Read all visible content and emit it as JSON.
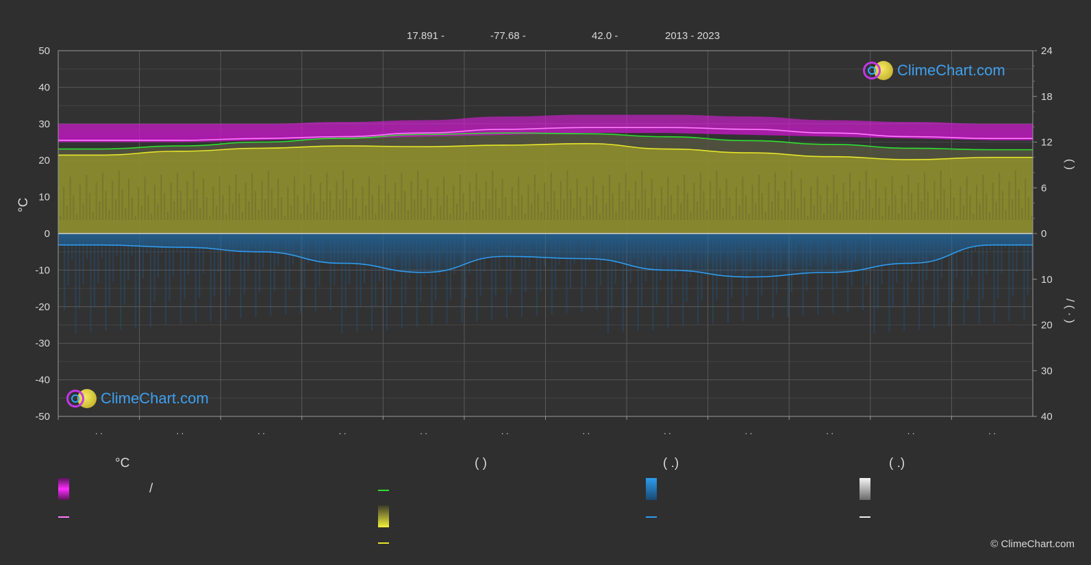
{
  "header": {
    "lat": "17.891 -",
    "lon": "-77.68 -",
    "elev": "42.0 -",
    "years": "2013 - 2023"
  },
  "logo_text": "ClimeChart.com",
  "copyright": "© ClimeChart.com",
  "chart_data": {
    "type": "area",
    "x": [
      1,
      2,
      3,
      4,
      5,
      6,
      7,
      8,
      9,
      10,
      11,
      12
    ],
    "month_labels": [
      ". .",
      ". .",
      ". .",
      ". .",
      ". .",
      ". .",
      ". .",
      ". .",
      ". .",
      ". .",
      ". .",
      ". ."
    ],
    "left_axis": {
      "ylabel": "°C",
      "ylim": [
        -50,
        50
      ],
      "ticks": [
        -50,
        -40,
        -30,
        -20,
        -10,
        0,
        10,
        20,
        30,
        40,
        50
      ]
    },
    "right_axis_top": {
      "ylim": [
        0,
        24
      ],
      "ticks": [
        0,
        6,
        12,
        18,
        24
      ],
      "label": "( )"
    },
    "right_axis_bottom": {
      "ylim": [
        0,
        40
      ],
      "ticks": [
        0,
        10,
        20,
        30,
        40
      ],
      "label": "/ ( · )"
    },
    "series": [
      {
        "id": "temp_range",
        "color": "#d620d6",
        "min": [
          25,
          25,
          25.5,
          26,
          26.5,
          27,
          27.5,
          27.5,
          27,
          26.5,
          26,
          25.5
        ],
        "max": [
          30,
          30,
          30,
          30.5,
          31,
          32,
          32.5,
          32.5,
          32,
          31,
          30.5,
          30
        ]
      },
      {
        "id": "temp_avg",
        "color": "#ff7cff",
        "values": [
          25.5,
          25.5,
          26,
          26.5,
          27.5,
          28.5,
          29,
          29,
          28.5,
          27.5,
          26.5,
          26
        ]
      },
      {
        "id": "daylight",
        "color": "#2fe02f",
        "values": [
          11.1,
          11.5,
          12.0,
          12.5,
          13.0,
          13.2,
          13.1,
          12.7,
          12.2,
          11.7,
          11.2,
          11.0
        ]
      },
      {
        "id": "sunshine",
        "color": "#e6e62b",
        "values": [
          10.3,
          10.8,
          11.2,
          11.5,
          11.4,
          11.6,
          11.8,
          11.1,
          10.6,
          10.1,
          9.7,
          10.0
        ]
      },
      {
        "id": "precipitation",
        "color": "#2d9cf0",
        "values": [
          2.5,
          3.0,
          4.0,
          6.5,
          8.5,
          5.0,
          5.5,
          8.0,
          9.5,
          8.5,
          6.5,
          2.5
        ]
      }
    ]
  },
  "legend": {
    "col1_head": "°C",
    "col1_sep": "/",
    "col2_head": "(          )",
    "col3_head": "(    .)",
    "col4_head": "(    .)"
  }
}
